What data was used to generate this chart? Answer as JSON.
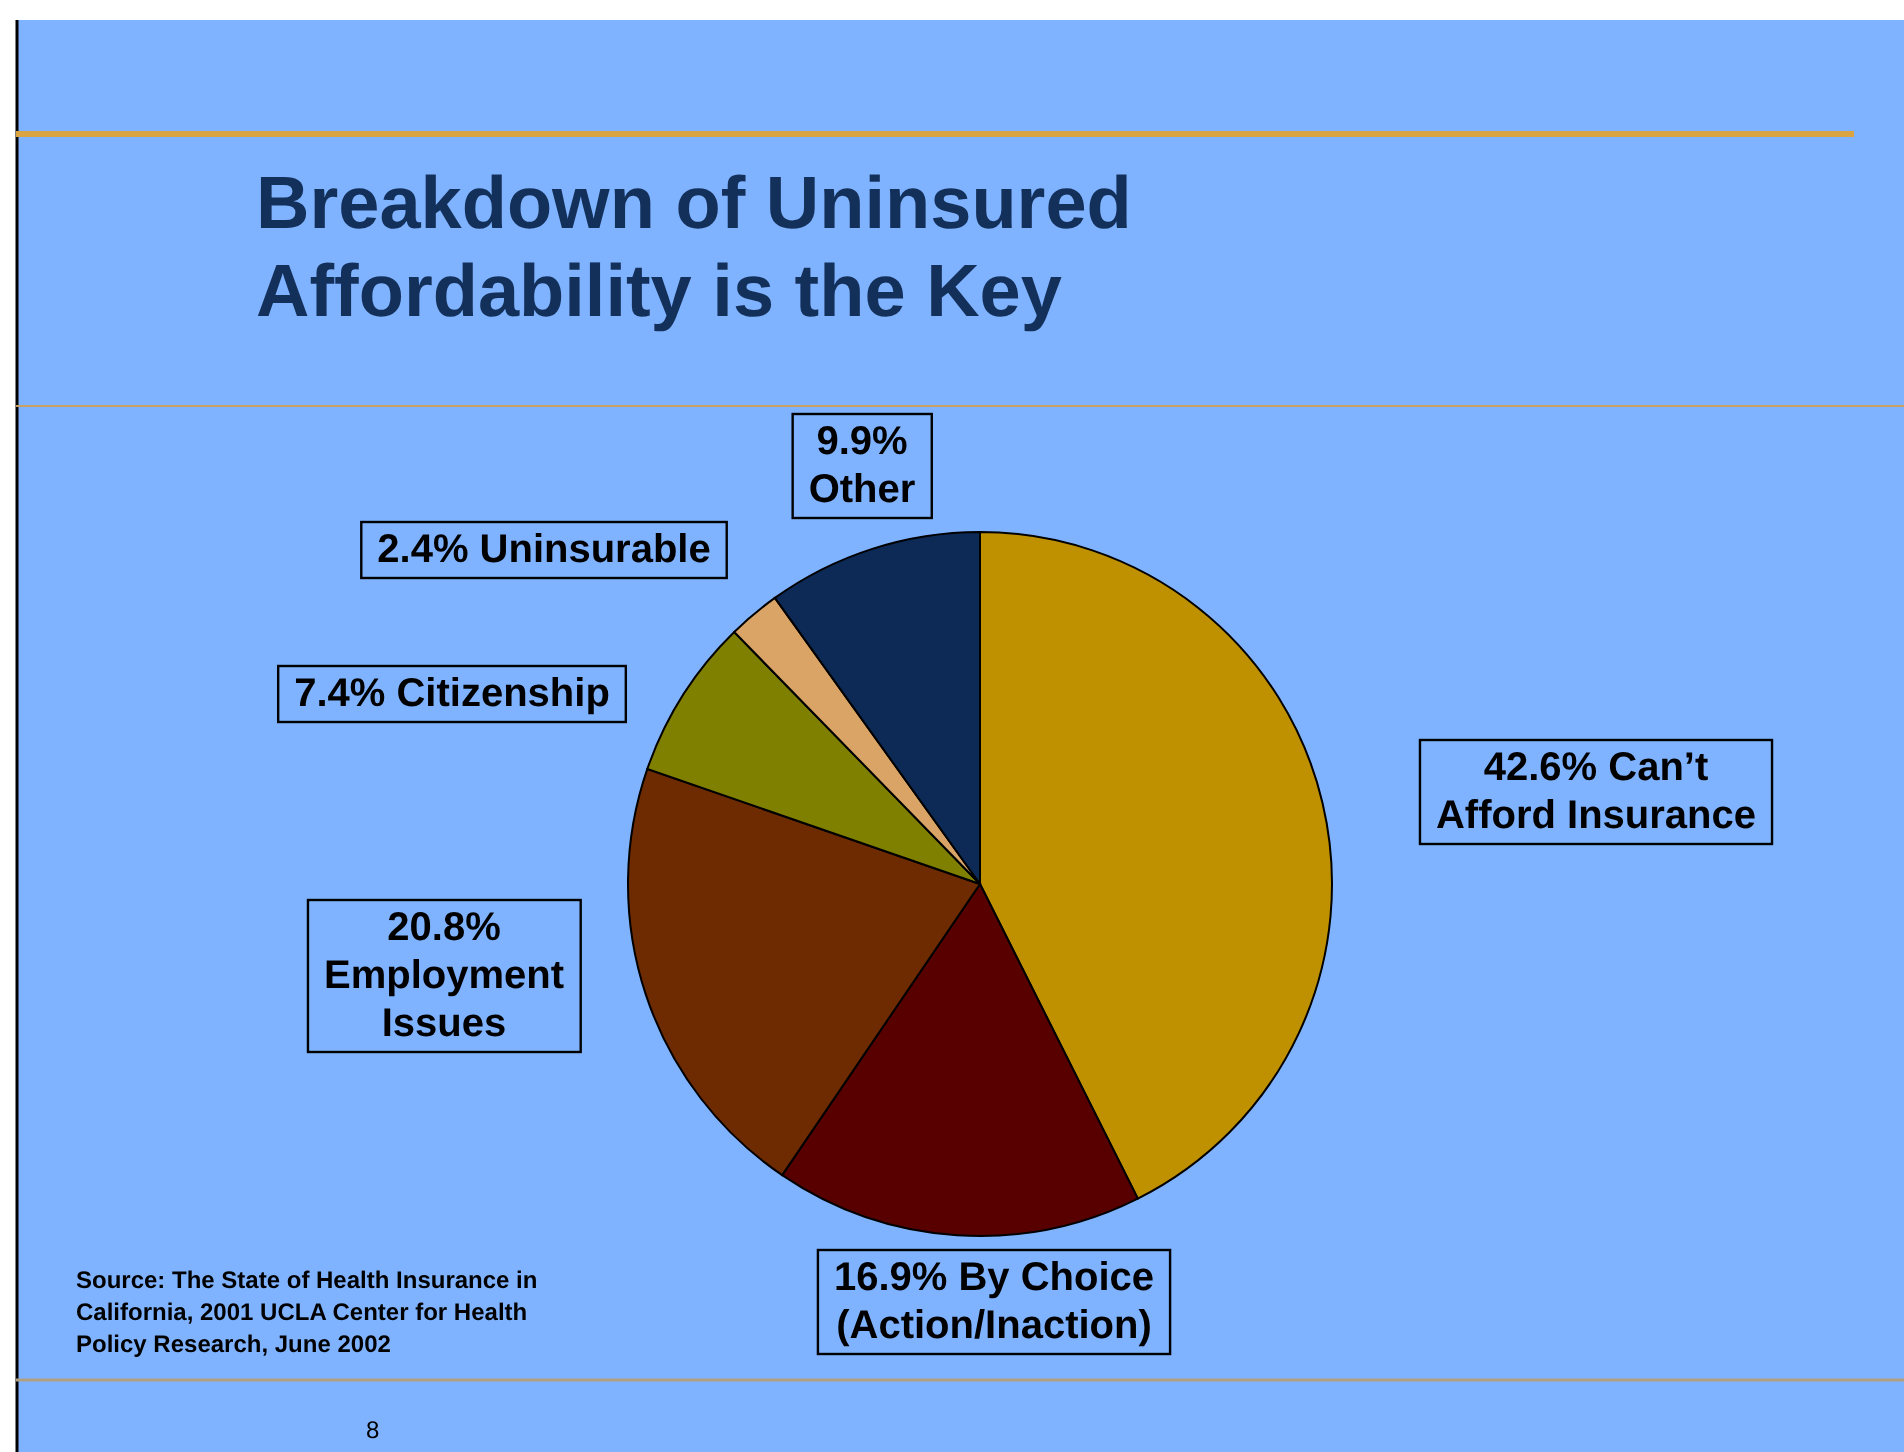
{
  "chart_data": {
    "type": "pie",
    "title": "Breakdown of Uninsured\nAffordability is the Key",
    "categories": [
      "Can’t Afford Insurance",
      "By Choice (Action/Inaction)",
      "Employment Issues",
      "Citizenship",
      "Uninsurable",
      "Other"
    ],
    "values": [
      42.6,
      16.9,
      20.8,
      7.4,
      2.4,
      9.9
    ],
    "value_labels": [
      "42.6%",
      "16.9%",
      "20.8%",
      "7.4%",
      "2.4%",
      "9.9%"
    ],
    "colors": [
      "#bf9000",
      "#580000",
      "#6e2a00",
      "#808000",
      "#d9a465",
      "#0c2a55"
    ],
    "annotations": [
      "Source: The State of Health Insurance in\nCalifornia, 2001 UCLA Center for Health\nPolicy Research, June 2002",
      "8"
    ]
  }
}
